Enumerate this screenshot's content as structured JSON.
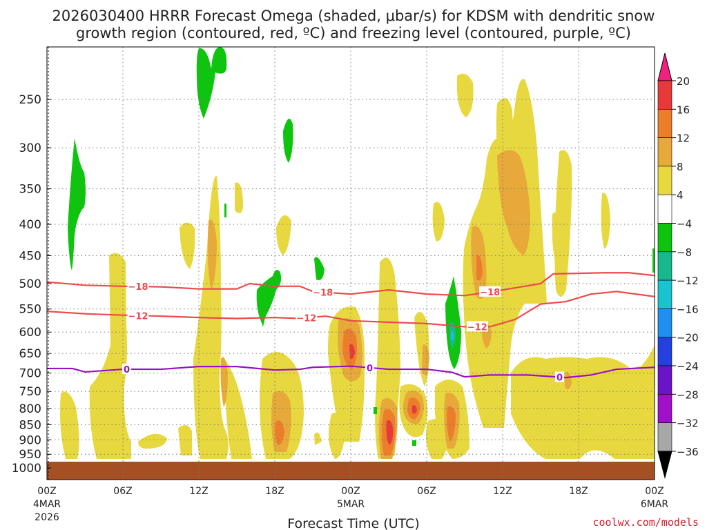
{
  "chart_data": {
    "type": "heatmap",
    "title_line1": "2026030400 HRRR Forecast Omega (shaded, μbar/s) for KDSM with dendritic snow",
    "title_line2": "growth region (contoured, red, ºC) and freezing level (contoured, purple, ºC)",
    "xlabel": "Forecast Time (UTC)",
    "credit": "coolwx.com/models",
    "x_range_hours": [
      0,
      48
    ],
    "x_ticks": [
      {
        "hour": 0,
        "label": "00Z",
        "sub1": "4MAR",
        "sub2": "2026"
      },
      {
        "hour": 6,
        "label": "06Z"
      },
      {
        "hour": 12,
        "label": "12Z"
      },
      {
        "hour": 18,
        "label": "18Z"
      },
      {
        "hour": 24,
        "label": "00Z",
        "sub1": "5MAR"
      },
      {
        "hour": 30,
        "label": "06Z"
      },
      {
        "hour": 36,
        "label": "12Z"
      },
      {
        "hour": 42,
        "label": "18Z"
      },
      {
        "hour": 48,
        "label": "00Z",
        "sub1": "6MAR"
      }
    ],
    "y_range_hpa": [
      200,
      1000
    ],
    "y_ticks": [
      250,
      300,
      350,
      400,
      450,
      500,
      550,
      600,
      650,
      700,
      750,
      800,
      850,
      900,
      950,
      1000
    ],
    "colorbar": {
      "levels": [
        {
          "label": "20",
          "color": "#f0207f"
        },
        {
          "label": "16",
          "color": "#e8393a"
        },
        {
          "label": "12",
          "color": "#ec7d2a"
        },
        {
          "label": "8",
          "color": "#e6a93a"
        },
        {
          "label": "4",
          "color": "#e8d83f"
        },
        {
          "label": "−4",
          "color": "#ffffff"
        },
        {
          "label": "−8",
          "color": "#0fc40f"
        },
        {
          "label": "−12",
          "color": "#16b88c"
        },
        {
          "label": "−16",
          "color": "#19c3cf"
        },
        {
          "label": "−20",
          "color": "#1e90f0"
        },
        {
          "label": "−24",
          "color": "#2440e0"
        },
        {
          "label": "−28",
          "color": "#6a14c8"
        },
        {
          "label": "−32",
          "color": "#a010c8"
        },
        {
          "label": "−36",
          "color": "#a8a8a8"
        }
      ],
      "low_end_color": "#000000"
    },
    "contours": [
      {
        "name": "-18C",
        "label": "−18",
        "color": "#ee4a4a",
        "points": [
          [
            0,
            497
          ],
          [
            3,
            503
          ],
          [
            6,
            505
          ],
          [
            9,
            506
          ],
          [
            12,
            510
          ],
          [
            15,
            510
          ],
          [
            16,
            500
          ],
          [
            18,
            505
          ],
          [
            20,
            505
          ],
          [
            21,
            515
          ],
          [
            24,
            520
          ],
          [
            27,
            512
          ],
          [
            30,
            520
          ],
          [
            33,
            523
          ],
          [
            36,
            512
          ],
          [
            39,
            500
          ],
          [
            40,
            482
          ],
          [
            44,
            480
          ],
          [
            46,
            480
          ],
          [
            48,
            485
          ]
        ],
        "label_hours": [
          7.2,
          21.8,
          35
        ]
      },
      {
        "name": "-12C",
        "label": "−12",
        "color": "#ee4a4a",
        "points": [
          [
            0,
            555
          ],
          [
            3,
            560
          ],
          [
            6,
            563
          ],
          [
            9,
            565
          ],
          [
            12,
            568
          ],
          [
            15,
            570
          ],
          [
            18,
            568
          ],
          [
            20,
            570
          ],
          [
            22,
            565
          ],
          [
            24,
            575
          ],
          [
            27,
            578
          ],
          [
            30,
            581
          ],
          [
            33,
            588
          ],
          [
            35,
            588
          ],
          [
            37,
            572
          ],
          [
            39,
            540
          ],
          [
            41,
            535
          ],
          [
            43,
            520
          ],
          [
            45,
            515
          ],
          [
            48,
            525
          ]
        ],
        "label_hours": [
          7.2,
          20.5,
          34
        ]
      },
      {
        "name": "0C freezing",
        "label": "0",
        "color": "#9a10c8",
        "points": [
          [
            0,
            688
          ],
          [
            2,
            688
          ],
          [
            3,
            697
          ],
          [
            6,
            690
          ],
          [
            9,
            690
          ],
          [
            12,
            683
          ],
          [
            15,
            683
          ],
          [
            18,
            692
          ],
          [
            20,
            690
          ],
          [
            21,
            685
          ],
          [
            24,
            682
          ],
          [
            27,
            690
          ],
          [
            30,
            690
          ],
          [
            32,
            698
          ],
          [
            33,
            710
          ],
          [
            35,
            705
          ],
          [
            38,
            705
          ],
          [
            41,
            712
          ],
          [
            43,
            705
          ],
          [
            45,
            690
          ],
          [
            48,
            685
          ]
        ],
        "label_hours": [
          6.3,
          25.5,
          40.5
        ]
      }
    ],
    "omega_regions": [
      {
        "class": "up-4",
        "center_hour": 6,
        "center_hpa": 650
      },
      {
        "class": "up-4",
        "center_hour": 19,
        "center_hpa": 700
      },
      {
        "class": "up-4",
        "center_hour": 25,
        "center_hpa": 600
      },
      {
        "class": "up-8",
        "center_hour": 24,
        "center_hpa": 620
      },
      {
        "class": "up-12",
        "center_hour": 24,
        "center_hpa": 650
      },
      {
        "class": "up-12",
        "center_hour": 28,
        "center_hpa": 830
      },
      {
        "class": "up-16",
        "center_hour": 29,
        "center_hpa": 880
      },
      {
        "class": "up-12",
        "center_hour": 32,
        "center_hpa": 820
      },
      {
        "class": "up-4",
        "center_hour": 39,
        "center_hpa": 420
      },
      {
        "class": "up-8",
        "center_hour": 40,
        "center_hpa": 350
      },
      {
        "class": "down-4",
        "center_hour": 13,
        "center_hpa": 230
      },
      {
        "class": "down-4",
        "center_hour": 3,
        "center_hpa": 380
      },
      {
        "class": "down-4",
        "center_hour": 18,
        "center_hpa": 520
      },
      {
        "class": "down-8",
        "center_hour": 33,
        "center_hpa": 600
      }
    ]
  }
}
